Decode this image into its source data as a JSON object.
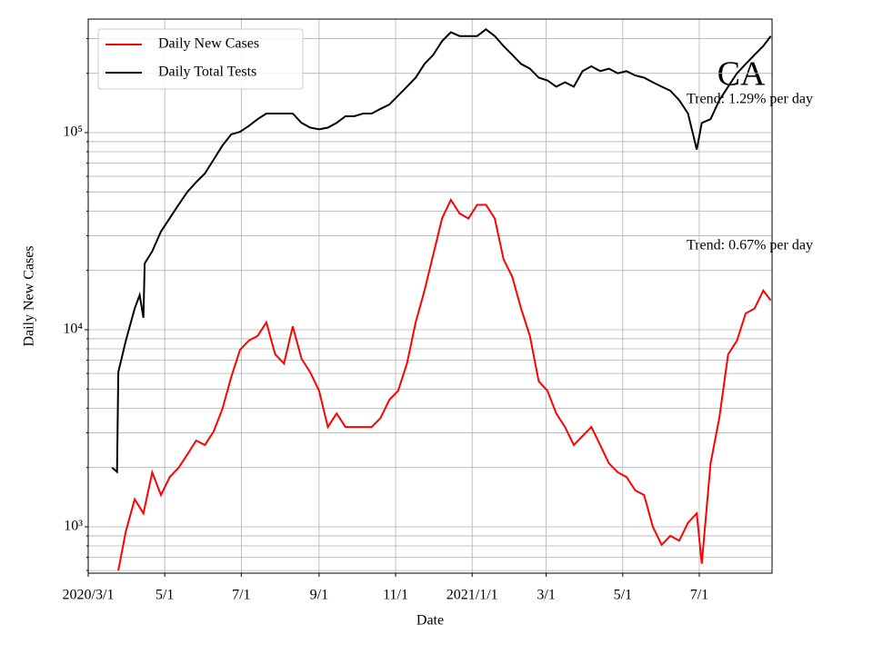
{
  "chart_data": {
    "type": "line",
    "title": "CA",
    "x_label": "Date",
    "y_label": "Daily New Cases",
    "log_y": true,
    "grid": true,
    "minor_grid": true,
    "legend": "upper left",
    "annotations": [
      "Trend: 1.29% per day",
      "Trend: 0.67% per day"
    ],
    "xlim": [
      "2020/3/1",
      "2021/8/28"
    ],
    "ylim": [
      582,
      376700
    ],
    "xticks": [
      "2020/3/1",
      {
        "value": "2020/5/1",
        "label": "5/1"
      },
      {
        "value": "2020/7/1",
        "label": "7/1"
      },
      {
        "value": "2020/9/1",
        "label": "9/1"
      },
      {
        "value": "2020/11/1",
        "label": "11/1"
      },
      {
        "value": "2021/1/1",
        "label": "2021/1/1"
      },
      {
        "value": "2021/3/1",
        "label": "3/1"
      },
      {
        "value": "2021/5/1",
        "label": "5/1"
      },
      {
        "value": "2021/7/1",
        "label": "7/1"
      }
    ],
    "yticks": [
      {
        "value": 1000,
        "label": "10³"
      },
      {
        "value": 10000,
        "label": "10⁴"
      },
      {
        "value": 100000,
        "label": "10⁵"
      }
    ],
    "series": [
      {
        "name": "Daily New Cases",
        "color": "#ff0000",
        "x": [
          "2020/3/25",
          "2020/3/31",
          "2020/4/7",
          "2020/4/14",
          "2020/4/21",
          "2020/4/28",
          "2020/5/5",
          "2020/5/12",
          "2020/5/19",
          "2020/5/26",
          "2020/6/2",
          "2020/6/9",
          "2020/6/16",
          "2020/6/23",
          "2020/6/30",
          "2020/7/7",
          "2020/7/14",
          "2020/7/21",
          "2020/7/28",
          "2020/8/4",
          "2020/8/11",
          "2020/8/18",
          "2020/8/25",
          "2020/9/1",
          "2020/9/8",
          "2020/9/15",
          "2020/9/22",
          "2020/9/29",
          "2020/10/6",
          "2020/10/13",
          "2020/10/20",
          "2020/10/27",
          "2020/11/3",
          "2020/11/10",
          "2020/11/17",
          "2020/11/24",
          "2020/12/1",
          "2020/12/8",
          "2020/12/15",
          "2020/12/22",
          "2020/12/29",
          "2021/1/5",
          "2021/1/12",
          "2021/1/19",
          "2021/1/26",
          "2021/2/2",
          "2021/2/9",
          "2021/2/16",
          "2021/2/23",
          "2021/3/2",
          "2021/3/9",
          "2021/3/16",
          "2021/3/23",
          "2021/3/30",
          "2021/4/6",
          "2021/4/13",
          "2021/4/20",
          "2021/4/27",
          "2021/5/4",
          "2021/5/11",
          "2021/5/18",
          "2021/5/25",
          "2021/6/1",
          "2021/6/8",
          "2021/6/15",
          "2021/6/22",
          "2021/6/29",
          "2021/7/3",
          "2021/7/10",
          "2021/7/17",
          "2021/7/24",
          "2021/7/31",
          "2021/8/7",
          "2021/8/14",
          "2021/8/21",
          "2021/8/27"
        ],
        "values": [
          600,
          950,
          1380,
          1170,
          1890,
          1450,
          1790,
          1990,
          2330,
          2740,
          2600,
          3050,
          3970,
          5760,
          7920,
          8800,
          9300,
          10900,
          7500,
          6740,
          10400,
          7120,
          6070,
          4900,
          3210,
          3760,
          3210,
          3210,
          3210,
          3210,
          3570,
          4410,
          4900,
          6740,
          10900,
          15800,
          24000,
          36700,
          45600,
          38900,
          36700,
          43000,
          43000,
          36700,
          22800,
          18500,
          12800,
          9300,
          5470,
          4900,
          3760,
          3210,
          2600,
          2890,
          3210,
          2600,
          2100,
          1890,
          1790,
          1530,
          1450,
          1000,
          810,
          900,
          850,
          1050,
          1170,
          650,
          2100,
          3570,
          7500,
          8800,
          12100,
          12800,
          15800,
          14100
        ]
      },
      {
        "name": "Daily Total Tests",
        "color": "#000000",
        "x": [
          "2020/3/20",
          "2020/3/24",
          "2020/3/25",
          "2020/3/31",
          "2020/4/7",
          "2020/4/11",
          "2020/4/14",
          "2020/4/15",
          "2020/4/21",
          "2020/4/28",
          "2020/5/5",
          "2020/5/12",
          "2020/5/19",
          "2020/5/26",
          "2020/6/2",
          "2020/6/9",
          "2020/6/16",
          "2020/6/23",
          "2020/6/30",
          "2020/7/7",
          "2020/7/14",
          "2020/7/21",
          "2020/7/28",
          "2020/8/4",
          "2020/8/11",
          "2020/8/18",
          "2020/8/25",
          "2020/9/1",
          "2020/9/8",
          "2020/9/15",
          "2020/9/22",
          "2020/9/29",
          "2020/10/6",
          "2020/10/13",
          "2020/10/20",
          "2020/10/27",
          "2020/11/3",
          "2020/11/10",
          "2020/11/17",
          "2020/11/24",
          "2020/12/1",
          "2020/12/8",
          "2020/12/15",
          "2020/12/22",
          "2020/12/29",
          "2021/1/5",
          "2021/1/12",
          "2021/1/19",
          "2021/1/26",
          "2021/2/2",
          "2021/2/9",
          "2021/2/16",
          "2021/2/23",
          "2021/3/2",
          "2021/3/9",
          "2021/3/16",
          "2021/3/23",
          "2021/3/30",
          "2021/4/6",
          "2021/4/13",
          "2021/4/20",
          "2021/4/27",
          "2021/5/4",
          "2021/5/11",
          "2021/5/18",
          "2021/5/25",
          "2021/6/1",
          "2021/6/8",
          "2021/6/15",
          "2021/6/22",
          "2021/6/29",
          "2021/7/3",
          "2021/7/10",
          "2021/7/17",
          "2021/7/24",
          "2021/7/31",
          "2021/8/7",
          "2021/8/14",
          "2021/8/21",
          "2021/8/27"
        ],
        "values": [
          2000,
          1900,
          6100,
          8800,
          12800,
          15000,
          11500,
          21700,
          25000,
          31500,
          36800,
          43000,
          50000,
          56000,
          62000,
          73000,
          86000,
          98000,
          101000,
          108000,
          117000,
          125000,
          125000,
          125000,
          125000,
          112000,
          106000,
          104000,
          106000,
          112000,
          121000,
          121000,
          125000,
          125000,
          132000,
          139000,
          154000,
          171000,
          190000,
          223000,
          248000,
          291000,
          323000,
          309000,
          309000,
          309000,
          334000,
          309000,
          275000,
          248000,
          223000,
          211000,
          190000,
          184000,
          171000,
          180000,
          171000,
          205000,
          217000,
          205000,
          211000,
          200000,
          205000,
          195000,
          190000,
          180000,
          171000,
          163000,
          146000,
          125000,
          82000,
          112000,
          117000,
          146000,
          171000,
          200000,
          223000,
          248000,
          275000,
          309000
        ]
      }
    ]
  }
}
